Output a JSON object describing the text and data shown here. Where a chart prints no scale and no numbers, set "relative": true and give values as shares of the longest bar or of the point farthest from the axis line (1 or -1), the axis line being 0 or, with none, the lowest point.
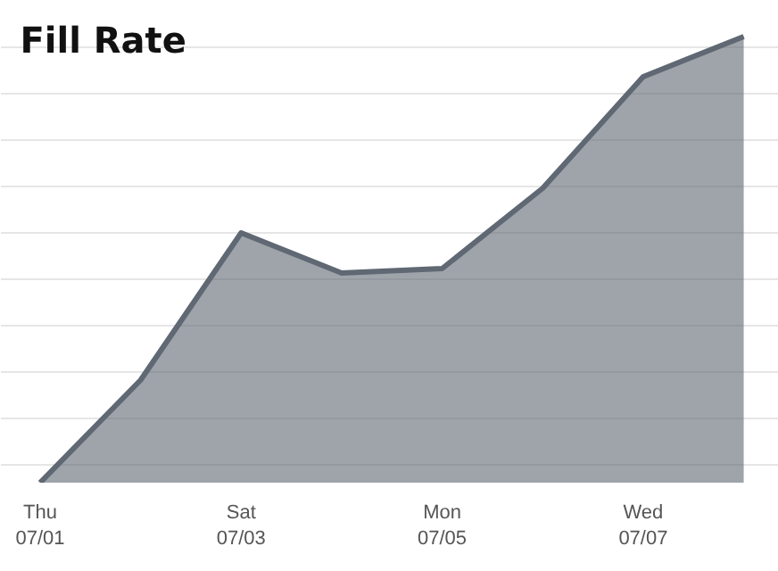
{
  "chart_data": {
    "type": "area",
    "title": "Fill Rate",
    "relative": true,
    "grid": "y",
    "categories": [
      "Thu\n07/01",
      null,
      "Sat\n07/03",
      null,
      "Mon\n07/05",
      null,
      "Wed\n07/07",
      null
    ],
    "series": [
      {
        "color": "#5f6873",
        "values": [
          0,
          0.23,
          0.56,
          0.47,
          0.48,
          0.66,
          0.91,
          1
        ]
      }
    ]
  }
}
